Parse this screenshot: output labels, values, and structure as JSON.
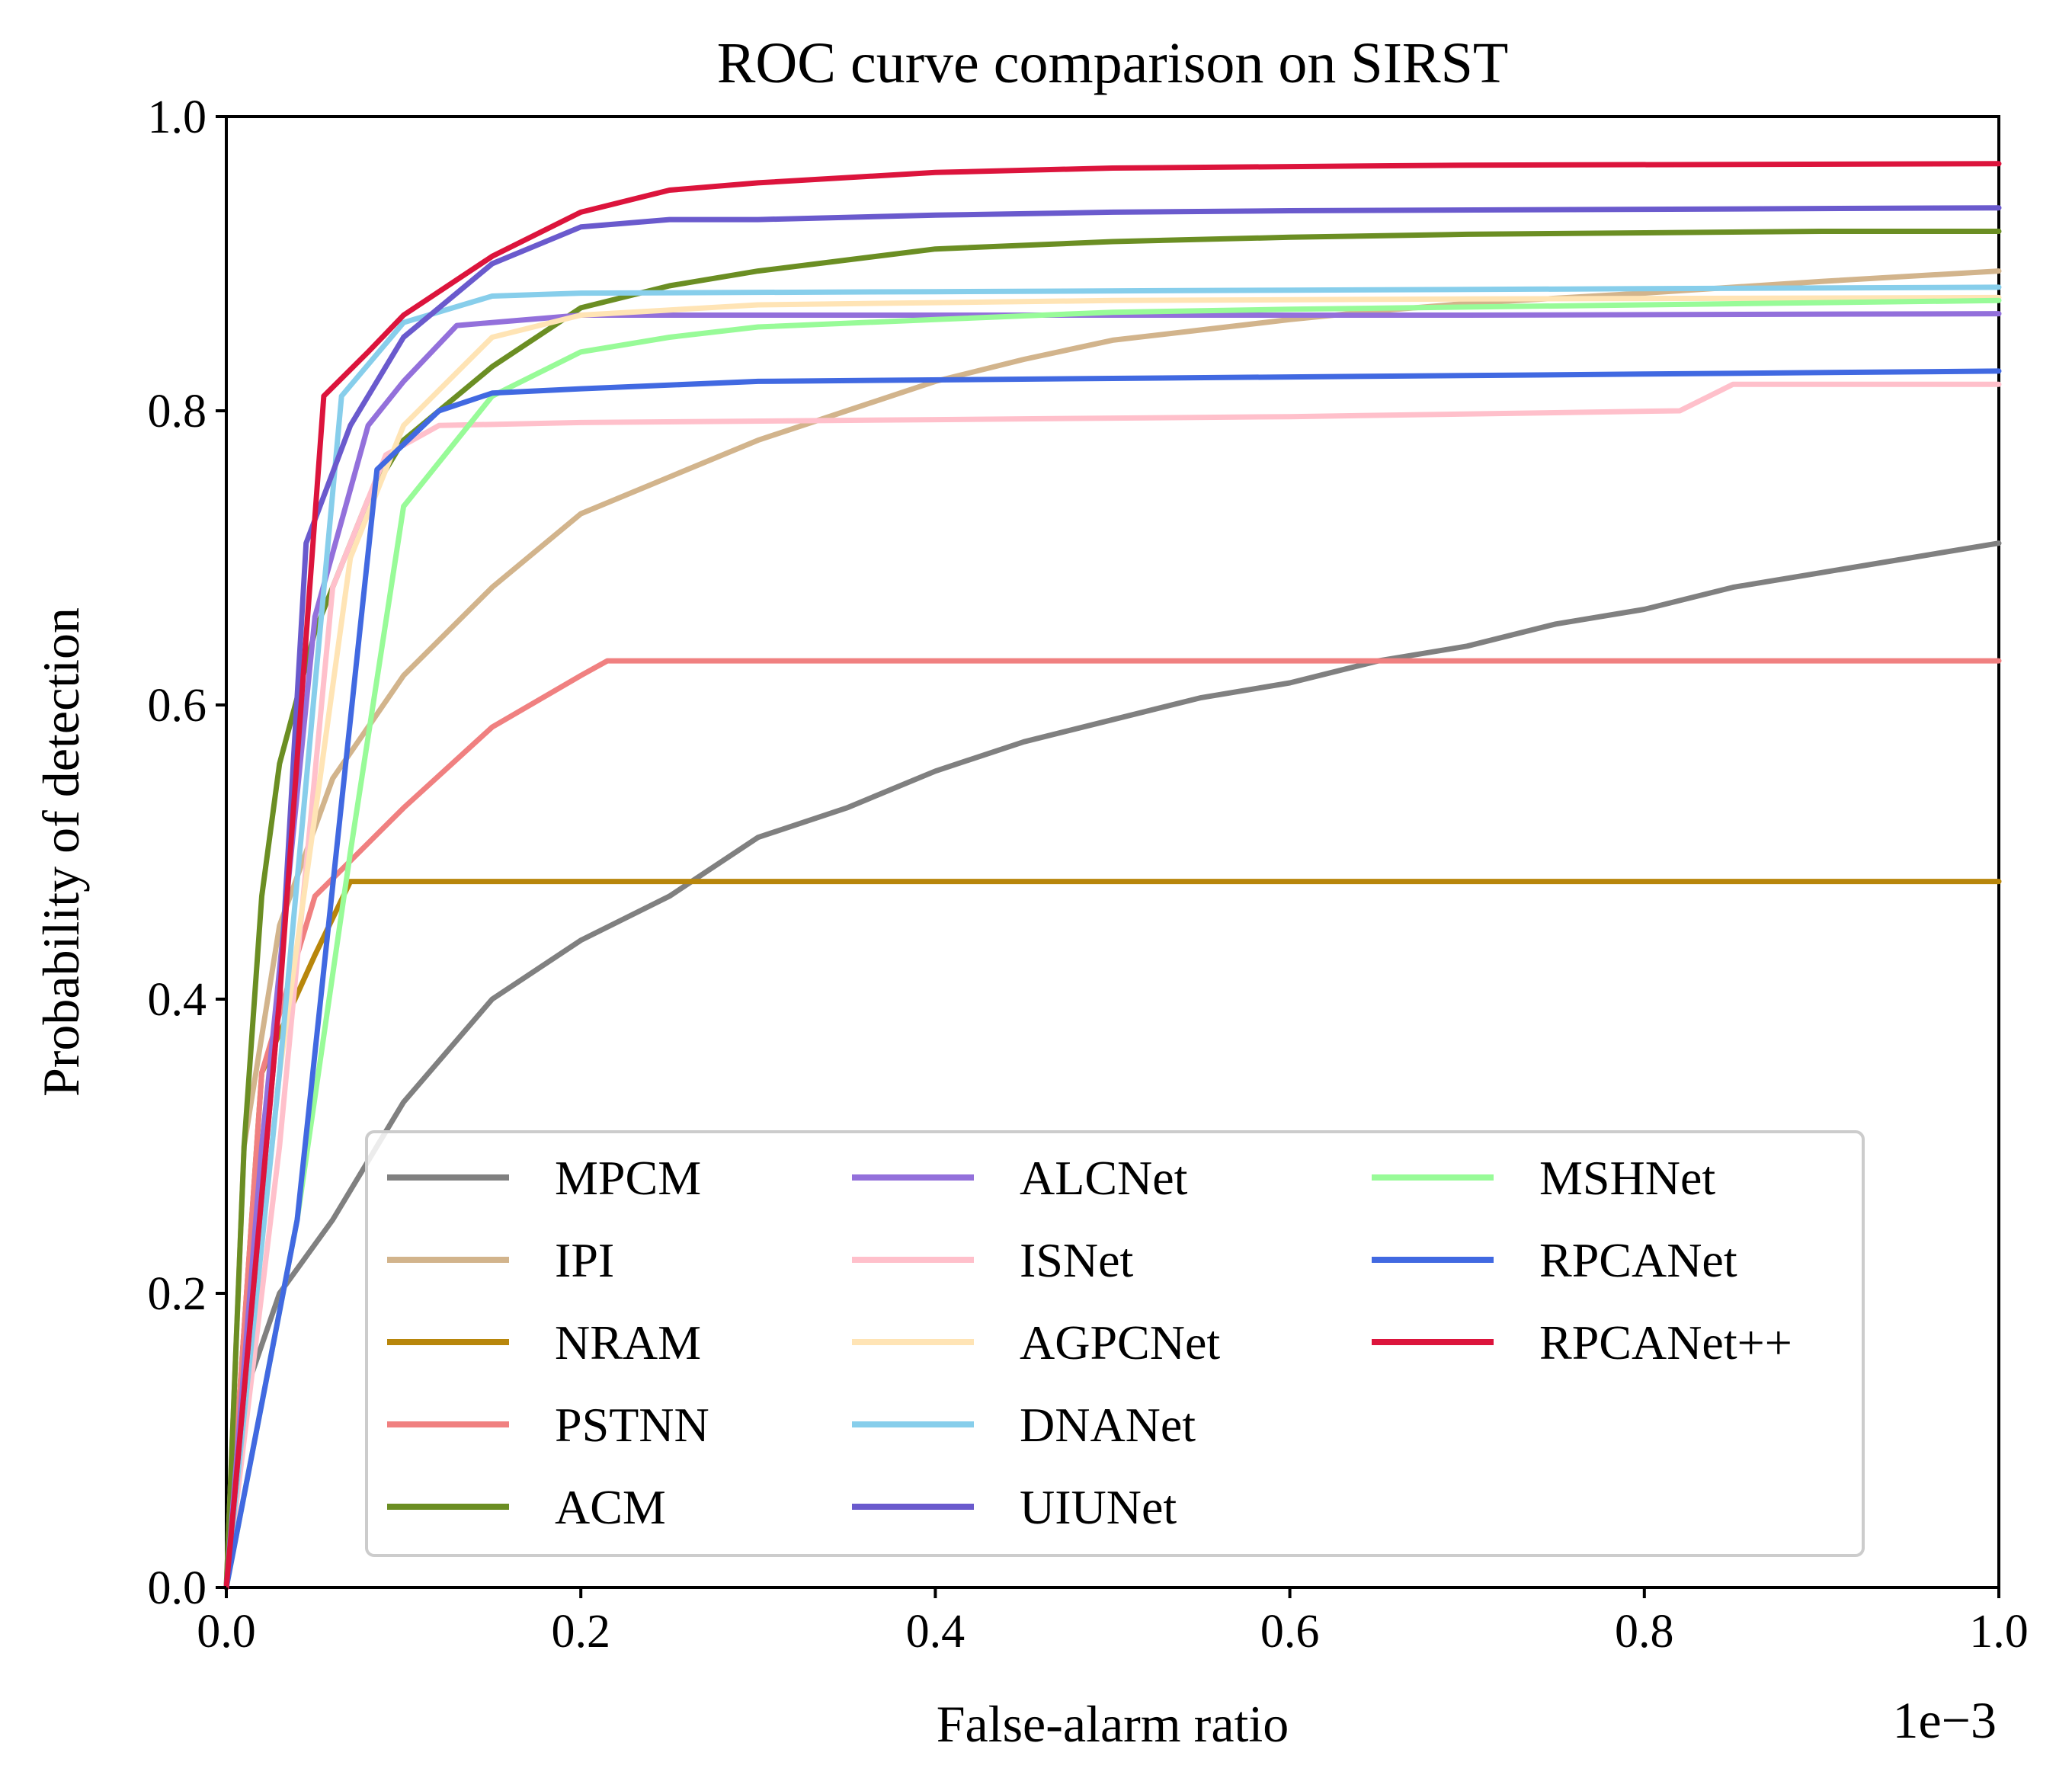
{
  "chart_data": {
    "type": "line",
    "title": "ROC curve comparison on SIRST",
    "xlabel": "False-alarm ratio",
    "ylabel": "Probability of detection",
    "x_offset_label": "1e−3",
    "xlim": [
      0,
      1
    ],
    "ylim": [
      0,
      1
    ],
    "xticks": [
      "0.0",
      "0.2",
      "0.4",
      "0.6",
      "0.8",
      "1.0"
    ],
    "yticks": [
      "0.0",
      "0.2",
      "0.4",
      "0.6",
      "0.8",
      "1.0"
    ],
    "grid": false,
    "legend_position": "lower-right",
    "legend_columns": 3,
    "series": [
      {
        "name": "MPCM",
        "color": "#808080",
        "points": [
          [
            0,
            0
          ],
          [
            0.01,
            0.13
          ],
          [
            0.03,
            0.2
          ],
          [
            0.06,
            0.25
          ],
          [
            0.1,
            0.33
          ],
          [
            0.15,
            0.4
          ],
          [
            0.2,
            0.44
          ],
          [
            0.25,
            0.47
          ],
          [
            0.3,
            0.51
          ],
          [
            0.35,
            0.53
          ],
          [
            0.4,
            0.555
          ],
          [
            0.45,
            0.575
          ],
          [
            0.5,
            0.59
          ],
          [
            0.55,
            0.605
          ],
          [
            0.6,
            0.615
          ],
          [
            0.65,
            0.63
          ],
          [
            0.7,
            0.64
          ],
          [
            0.75,
            0.655
          ],
          [
            0.8,
            0.665
          ],
          [
            0.85,
            0.68
          ],
          [
            0.9,
            0.69
          ],
          [
            0.95,
            0.7
          ],
          [
            1.0,
            0.71
          ]
        ]
      },
      {
        "name": "IPI",
        "color": "#d2b48c",
        "points": [
          [
            0,
            0
          ],
          [
            0.01,
            0.3
          ],
          [
            0.03,
            0.45
          ],
          [
            0.06,
            0.55
          ],
          [
            0.1,
            0.62
          ],
          [
            0.15,
            0.68
          ],
          [
            0.2,
            0.73
          ],
          [
            0.25,
            0.755
          ],
          [
            0.3,
            0.78
          ],
          [
            0.35,
            0.8
          ],
          [
            0.4,
            0.82
          ],
          [
            0.45,
            0.835
          ],
          [
            0.5,
            0.848
          ],
          [
            0.55,
            0.855
          ],
          [
            0.6,
            0.862
          ],
          [
            0.65,
            0.868
          ],
          [
            0.7,
            0.873
          ],
          [
            0.8,
            0.88
          ],
          [
            0.9,
            0.888
          ],
          [
            1.0,
            0.895
          ]
        ]
      },
      {
        "name": "NRAM",
        "color": "#b8860b",
        "points": [
          [
            0,
            0
          ],
          [
            0.02,
            0.35
          ],
          [
            0.05,
            0.43
          ],
          [
            0.07,
            0.48
          ],
          [
            0.2,
            0.48
          ],
          [
            0.5,
            0.48
          ],
          [
            1.0,
            0.48
          ]
        ]
      },
      {
        "name": "PSTNN",
        "color": "#f08080",
        "points": [
          [
            0,
            0
          ],
          [
            0.02,
            0.35
          ],
          [
            0.05,
            0.47
          ],
          [
            0.1,
            0.53
          ],
          [
            0.15,
            0.585
          ],
          [
            0.2,
            0.62
          ],
          [
            0.215,
            0.63
          ],
          [
            0.5,
            0.63
          ],
          [
            1.0,
            0.63
          ]
        ]
      },
      {
        "name": "ACM",
        "color": "#6b8e23",
        "points": [
          [
            0,
            0
          ],
          [
            0.01,
            0.3
          ],
          [
            0.02,
            0.47
          ],
          [
            0.03,
            0.56
          ],
          [
            0.05,
            0.65
          ],
          [
            0.08,
            0.74
          ],
          [
            0.1,
            0.78
          ],
          [
            0.15,
            0.83
          ],
          [
            0.2,
            0.87
          ],
          [
            0.25,
            0.885
          ],
          [
            0.3,
            0.895
          ],
          [
            0.4,
            0.91
          ],
          [
            0.5,
            0.915
          ],
          [
            0.6,
            0.918
          ],
          [
            0.7,
            0.92
          ],
          [
            0.8,
            0.921
          ],
          [
            0.9,
            0.922
          ],
          [
            1.0,
            0.922
          ]
        ]
      },
      {
        "name": "ALCNet",
        "color": "#9370db",
        "points": [
          [
            0,
            0
          ],
          [
            0.02,
            0.3
          ],
          [
            0.05,
            0.66
          ],
          [
            0.08,
            0.79
          ],
          [
            0.1,
            0.82
          ],
          [
            0.13,
            0.858
          ],
          [
            0.2,
            0.865
          ],
          [
            0.3,
            0.865
          ],
          [
            0.5,
            0.865
          ],
          [
            0.7,
            0.865
          ],
          [
            1.0,
            0.866
          ]
        ]
      },
      {
        "name": "ISNet",
        "color": "#ffc0cb",
        "points": [
          [
            0,
            0
          ],
          [
            0.03,
            0.3
          ],
          [
            0.06,
            0.68
          ],
          [
            0.09,
            0.77
          ],
          [
            0.12,
            0.79
          ],
          [
            0.2,
            0.792
          ],
          [
            0.4,
            0.794
          ],
          [
            0.6,
            0.796
          ],
          [
            0.82,
            0.8
          ],
          [
            0.85,
            0.818
          ],
          [
            1.0,
            0.818
          ]
        ]
      },
      {
        "name": "AGPCNet",
        "color": "#ffe4b5",
        "points": [
          [
            0,
            0
          ],
          [
            0.03,
            0.35
          ],
          [
            0.07,
            0.7
          ],
          [
            0.1,
            0.79
          ],
          [
            0.15,
            0.85
          ],
          [
            0.2,
            0.865
          ],
          [
            0.3,
            0.872
          ],
          [
            0.5,
            0.875
          ],
          [
            0.7,
            0.876
          ],
          [
            1.0,
            0.877
          ]
        ]
      },
      {
        "name": "DNANet",
        "color": "#87ceeb",
        "points": [
          [
            0,
            0
          ],
          [
            0.03,
            0.35
          ],
          [
            0.065,
            0.81
          ],
          [
            0.1,
            0.86
          ],
          [
            0.15,
            0.878
          ],
          [
            0.2,
            0.88
          ],
          [
            0.4,
            0.881
          ],
          [
            0.6,
            0.882
          ],
          [
            0.8,
            0.883
          ],
          [
            1.0,
            0.884
          ]
        ]
      },
      {
        "name": "UIUNet",
        "color": "#6a5acd",
        "points": [
          [
            0,
            0
          ],
          [
            0.03,
            0.4
          ],
          [
            0.045,
            0.71
          ],
          [
            0.07,
            0.79
          ],
          [
            0.1,
            0.85
          ],
          [
            0.15,
            0.9
          ],
          [
            0.2,
            0.925
          ],
          [
            0.25,
            0.93
          ],
          [
            0.3,
            0.93
          ],
          [
            0.4,
            0.933
          ],
          [
            0.5,
            0.935
          ],
          [
            0.6,
            0.936
          ],
          [
            0.8,
            0.937
          ],
          [
            1.0,
            0.938
          ]
        ]
      },
      {
        "name": "MSHNet",
        "color": "#98fb98",
        "points": [
          [
            0,
            0
          ],
          [
            0.04,
            0.25
          ],
          [
            0.07,
            0.5
          ],
          [
            0.1,
            0.735
          ],
          [
            0.15,
            0.81
          ],
          [
            0.2,
            0.84
          ],
          [
            0.25,
            0.85
          ],
          [
            0.3,
            0.857
          ],
          [
            0.4,
            0.862
          ],
          [
            0.5,
            0.867
          ],
          [
            0.6,
            0.869
          ],
          [
            0.8,
            0.872
          ],
          [
            1.0,
            0.875
          ]
        ]
      },
      {
        "name": "RPCANet",
        "color": "#4169e1",
        "points": [
          [
            0,
            0
          ],
          [
            0.04,
            0.25
          ],
          [
            0.085,
            0.76
          ],
          [
            0.12,
            0.8
          ],
          [
            0.15,
            0.812
          ],
          [
            0.2,
            0.815
          ],
          [
            0.3,
            0.82
          ],
          [
            0.5,
            0.822
          ],
          [
            0.8,
            0.825
          ],
          [
            1.0,
            0.827
          ]
        ]
      },
      {
        "name": "RPCANet++",
        "color": "#dc143c",
        "points": [
          [
            0,
            0
          ],
          [
            0.03,
            0.4
          ],
          [
            0.055,
            0.81
          ],
          [
            0.08,
            0.84
          ],
          [
            0.1,
            0.865
          ],
          [
            0.15,
            0.905
          ],
          [
            0.2,
            0.935
          ],
          [
            0.25,
            0.95
          ],
          [
            0.3,
            0.955
          ],
          [
            0.4,
            0.962
          ],
          [
            0.5,
            0.965
          ],
          [
            0.7,
            0.967
          ],
          [
            1.0,
            0.968
          ]
        ]
      }
    ]
  }
}
